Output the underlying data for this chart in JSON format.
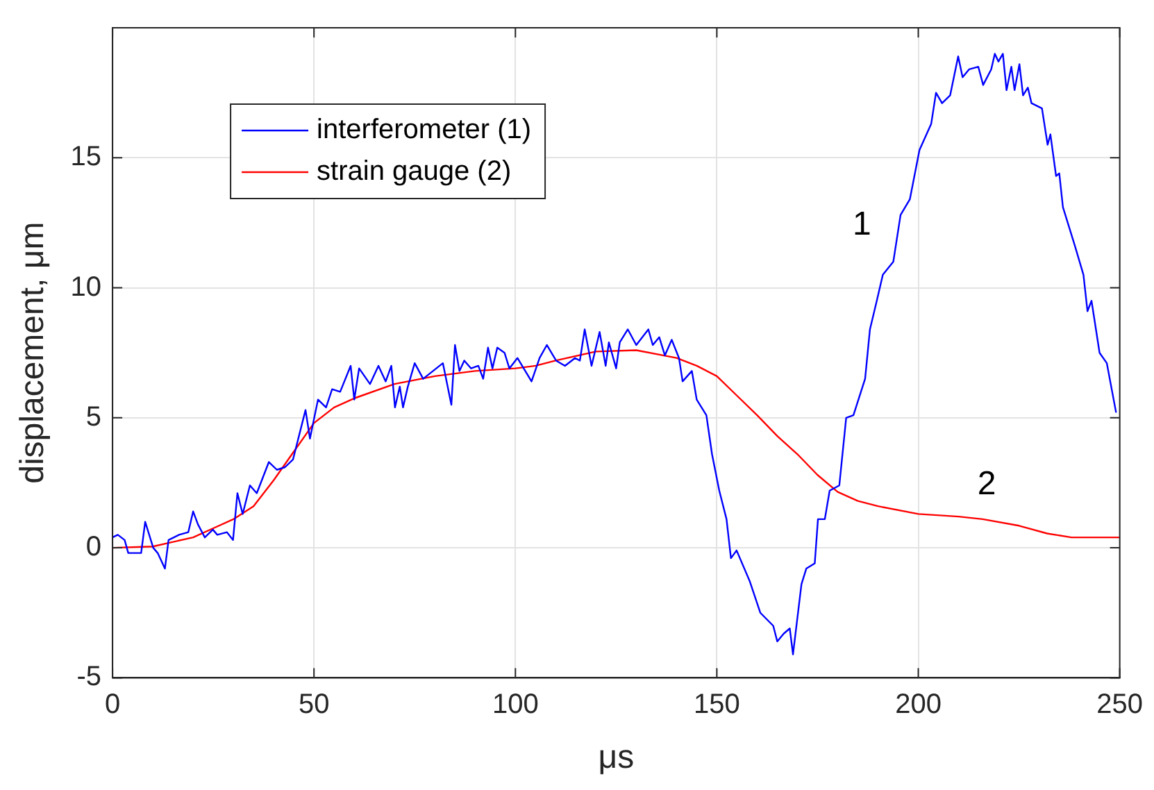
{
  "chart_data": {
    "type": "line",
    "xlabel": "μs",
    "ylabel": "displacement, μm",
    "xlim": [
      0,
      250
    ],
    "xticks": [
      0,
      50,
      100,
      150,
      200,
      250
    ],
    "ylim": [
      -5,
      20
    ],
    "yticks": [
      -5,
      0,
      5,
      10,
      15
    ],
    "grid": true,
    "legend": "top left",
    "marker": "none",
    "line_style": "solid",
    "annotations": [
      "1",
      "2"
    ],
    "series": [
      {
        "name": "interferometer (1)",
        "color": "#0000ff",
        "x": [
          0,
          1.3,
          3,
          3.9,
          7.1,
          8.1,
          10.1,
          11.2,
          13,
          13.9,
          16.5,
          18.8,
          20,
          21.2,
          22.9,
          24.9,
          26,
          28.4,
          29.9,
          31,
          32.3,
          34.1,
          35.8,
          38.8,
          40.8,
          42.8,
          44.8,
          47.9,
          49,
          51,
          53,
          54.5,
          56.5,
          59.1,
          60,
          61.2,
          63.9,
          66,
          67.8,
          69.2,
          70.1,
          71.3,
          72.1,
          73.3,
          75,
          77.1,
          82,
          84.1,
          85,
          86.1,
          87.3,
          89,
          90.8,
          92,
          93.2,
          94.3,
          95.5,
          97.3,
          98.5,
          100.5,
          104,
          106,
          107.8,
          110.1,
          112.3,
          114.8,
          116,
          117.2,
          118.9,
          120.9,
          122.4,
          123.2,
          125,
          125.9,
          127.9,
          130,
          133,
          134.1,
          135.7,
          137.1,
          138.8,
          140.6,
          141.5,
          143.8,
          145,
          147.4,
          148.8,
          150.6,
          152.4,
          153.5,
          154.9,
          158.2,
          160.8,
          164,
          165,
          166.6,
          168.1,
          168.9,
          171,
          172.2,
          174.3,
          175.1,
          176.8,
          178,
          180.4,
          182.1,
          183.9,
          186.8,
          188,
          189.7,
          191.2,
          193.8,
          195.6,
          197.9,
          200.3,
          203.2,
          204.4,
          205.9,
          207.9,
          209.9,
          211,
          212.6,
          214.9,
          216.1,
          218.1,
          219,
          219.9,
          221,
          221.9,
          223.1,
          223.9,
          225.1,
          226,
          227.2,
          228.1,
          230.7,
          232.1,
          232.8,
          234.2,
          235,
          235.9,
          238.9,
          241,
          242,
          243,
          245,
          246.8,
          249.1
        ],
        "values": [
          0.4,
          0.5,
          0.3,
          -0.2,
          -0.2,
          1,
          0,
          -0.2,
          -0.8,
          0.3,
          0.5,
          0.6,
          1.4,
          0.9,
          0.4,
          0.7,
          0.5,
          0.6,
          0.3,
          2.1,
          1.3,
          2.4,
          2.1,
          3.3,
          3,
          3.1,
          3.4,
          5.3,
          4.2,
          5.7,
          5.4,
          6.1,
          6,
          7,
          5.7,
          6.9,
          6.3,
          7,
          6.4,
          7,
          5.4,
          6.2,
          5.4,
          6.2,
          7.1,
          6.5,
          7.1,
          5.5,
          7.8,
          6.8,
          7.2,
          6.9,
          7,
          6.5,
          7.7,
          6.9,
          7.7,
          7.5,
          6.9,
          7.3,
          6.4,
          7.3,
          7.8,
          7.2,
          7,
          7.3,
          7.2,
          8.4,
          7,
          8.3,
          7,
          7.9,
          6.9,
          7.9,
          8.4,
          7.8,
          8.4,
          7.8,
          8.1,
          7.4,
          8,
          7.3,
          6.4,
          6.8,
          5.7,
          5.1,
          3.6,
          2.2,
          1.1,
          -0.4,
          -0.1,
          -1.3,
          -2.5,
          -3,
          -3.6,
          -3.3,
          -3.1,
          -4.1,
          -1.4,
          -0.8,
          -0.6,
          1.1,
          1.1,
          2.2,
          2.4,
          5,
          5.1,
          6.5,
          8.4,
          9.5,
          10.5,
          11,
          12.8,
          13.4,
          15.3,
          16.3,
          17.5,
          17.1,
          17.4,
          18.9,
          18.1,
          18.4,
          18.5,
          17.8,
          18.4,
          19,
          18.7,
          19,
          17.6,
          18.5,
          17.6,
          18.6,
          17.4,
          17.7,
          17.1,
          16.9,
          15.5,
          15.9,
          14.3,
          14.4,
          13.1,
          11.6,
          10.5,
          9.1,
          9.5,
          7.5,
          7.1,
          5.2
        ]
      },
      {
        "name": "strain gauge (2)",
        "color": "#ff0000",
        "x": [
          0,
          10,
          20,
          25,
          30,
          35,
          40,
          45,
          50,
          55,
          60,
          70,
          80,
          90,
          100,
          105,
          110,
          120,
          130,
          140,
          145,
          150,
          155,
          160,
          165,
          170,
          175,
          180,
          185,
          190,
          200,
          210,
          216,
          225,
          232,
          238,
          250
        ],
        "values": [
          0,
          0.05,
          0.4,
          0.75,
          1.1,
          1.6,
          2.6,
          3.7,
          4.8,
          5.4,
          5.75,
          6.3,
          6.6,
          6.8,
          6.9,
          7,
          7.2,
          7.55,
          7.6,
          7.3,
          7,
          6.6,
          5.85,
          5.1,
          4.3,
          3.6,
          2.8,
          2.15,
          1.8,
          1.6,
          1.3,
          1.2,
          1.1,
          0.85,
          0.55,
          0.4,
          0.4
        ]
      }
    ]
  }
}
